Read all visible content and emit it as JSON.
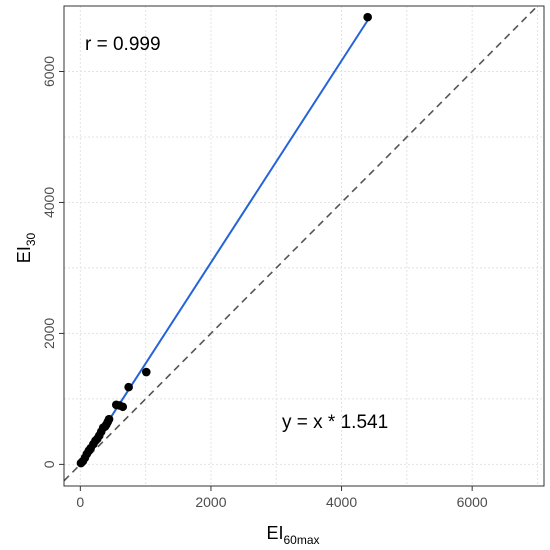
{
  "chart_data": {
    "type": "scatter",
    "xlabel": {
      "main": "EI",
      "sub": "60max"
    },
    "ylabel": {
      "main": "EI",
      "sub": "30"
    },
    "xlim": [
      -250,
      7100
    ],
    "ylim": [
      -330,
      7000
    ],
    "x_ticks": [
      0,
      2000,
      4000,
      6000
    ],
    "y_ticks": [
      0,
      2000,
      4000,
      6000
    ],
    "grid": true,
    "points": [
      {
        "x": 10,
        "y": 20
      },
      {
        "x": 40,
        "y": 50
      },
      {
        "x": 70,
        "y": 100
      },
      {
        "x": 100,
        "y": 160
      },
      {
        "x": 130,
        "y": 210
      },
      {
        "x": 160,
        "y": 250
      },
      {
        "x": 200,
        "y": 310
      },
      {
        "x": 230,
        "y": 360
      },
      {
        "x": 260,
        "y": 390
      },
      {
        "x": 290,
        "y": 440
      },
      {
        "x": 320,
        "y": 500
      },
      {
        "x": 350,
        "y": 560
      },
      {
        "x": 380,
        "y": 580
      },
      {
        "x": 400,
        "y": 610
      },
      {
        "x": 420,
        "y": 650
      },
      {
        "x": 440,
        "y": 690
      },
      {
        "x": 550,
        "y": 910
      },
      {
        "x": 600,
        "y": 900
      },
      {
        "x": 650,
        "y": 880
      },
      {
        "x": 740,
        "y": 1180
      },
      {
        "x": 1010,
        "y": 1410
      },
      {
        "x": 4400,
        "y": 6830
      }
    ],
    "fit_line": {
      "slope": 1.541,
      "x_range": [
        0,
        4400
      ],
      "color": "#2563d9"
    },
    "identity_line": {
      "color": "#555555",
      "style": "dashed"
    },
    "annotations": {
      "correlation": "r = 0.999",
      "equation": "y = x * 1.541"
    }
  }
}
